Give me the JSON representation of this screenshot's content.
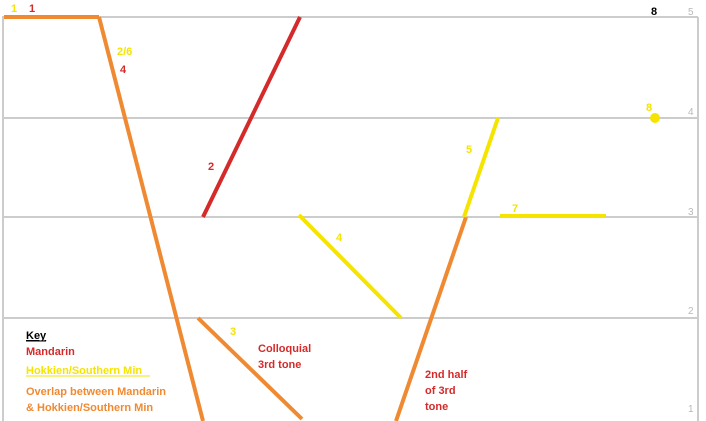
{
  "colors": {
    "mandarin": "#d42a2a",
    "hokkien": "#f5e400",
    "overlap": "#f08a32",
    "grid": "#cccccc",
    "level_text": "#b8b8b8",
    "black": "#000000"
  },
  "tone_levels": [
    "5",
    "4",
    "3",
    "2",
    "1"
  ],
  "contour_labels": {
    "overlap_tone1": "1",
    "mandarin_tone1": "1",
    "hokkien_26": "2/6",
    "mandarin_4": "4",
    "mandarin_2": "2",
    "overlap_3": "3",
    "hokkien_4": "4",
    "hokkien_5": "5",
    "hokkien_7": "7",
    "tone8_black": "8",
    "hokkien_8": "8"
  },
  "annotations": {
    "colloquial": [
      "Colloquial",
      "3rd tone"
    ],
    "second_half": [
      "2nd half",
      "of 3rd",
      "tone"
    ]
  },
  "key": {
    "title": "Key",
    "mandarin": "Mandarin",
    "hokkien": "Hokkien/Southern Min",
    "overlap": [
      "Overlap between Mandarin",
      "& Hokkien/Southern Min"
    ]
  }
}
